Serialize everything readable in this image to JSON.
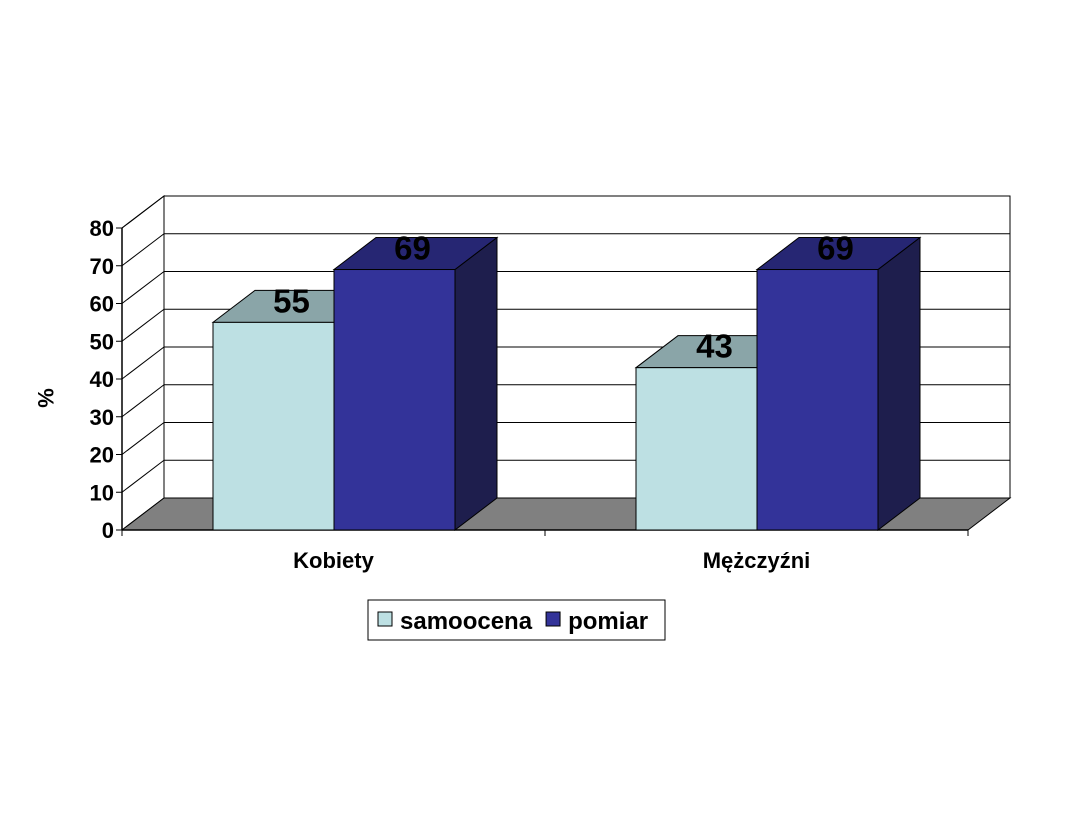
{
  "chart_data": {
    "type": "bar",
    "categories": [
      "Kobiety",
      "Mężczyźni"
    ],
    "series": [
      {
        "name": "samoocena",
        "values": [
          55,
          43
        ]
      },
      {
        "name": "pomiar",
        "values": [
          69,
          69
        ]
      }
    ],
    "ylabel": "%",
    "ylim": [
      0,
      80
    ],
    "yticks": [
      0,
      10,
      20,
      30,
      40,
      50,
      60,
      70,
      80
    ],
    "grid": true,
    "legend_position": "bottom",
    "three_d": true,
    "colors": {
      "samoocena": {
        "front": "#bde0e3",
        "top": "#8aa5a8"
      },
      "pomiar": {
        "front": "#333399",
        "top": "#262673",
        "side": "#1e1e4d"
      },
      "floor": "#808080",
      "background": "#ffffff"
    }
  }
}
